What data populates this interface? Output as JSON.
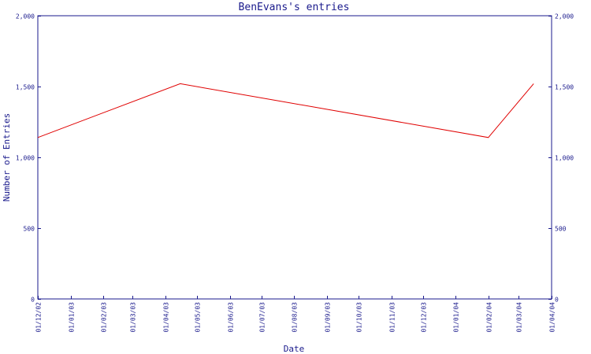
{
  "chart_data": {
    "type": "line",
    "title": "BenEvans's entries",
    "xlabel": "Date",
    "ylabel": "Number of Entries",
    "ylim": [
      0,
      2000
    ],
    "yticks": [
      0,
      500,
      1000,
      1500,
      2000
    ],
    "ytick_labels": [
      "0",
      "500",
      "1,000",
      "1,500",
      "2,000"
    ],
    "xticks": [
      "01/12/02",
      "01/01/03",
      "01/02/03",
      "01/03/03",
      "01/04/03",
      "01/05/03",
      "01/06/03",
      "01/07/03",
      "01/08/03",
      "01/09/03",
      "01/10/03",
      "01/11/03",
      "01/12/03",
      "01/01/04",
      "01/02/04",
      "01/03/04",
      "01/04/04"
    ],
    "grid": false,
    "series": [
      {
        "color": "#e00000",
        "x": [
          "2002-12-01",
          "2003-04-15",
          "2004-02-01",
          "2004-03-15"
        ],
        "y": [
          1140,
          1520,
          1140,
          1520
        ]
      }
    ]
  }
}
